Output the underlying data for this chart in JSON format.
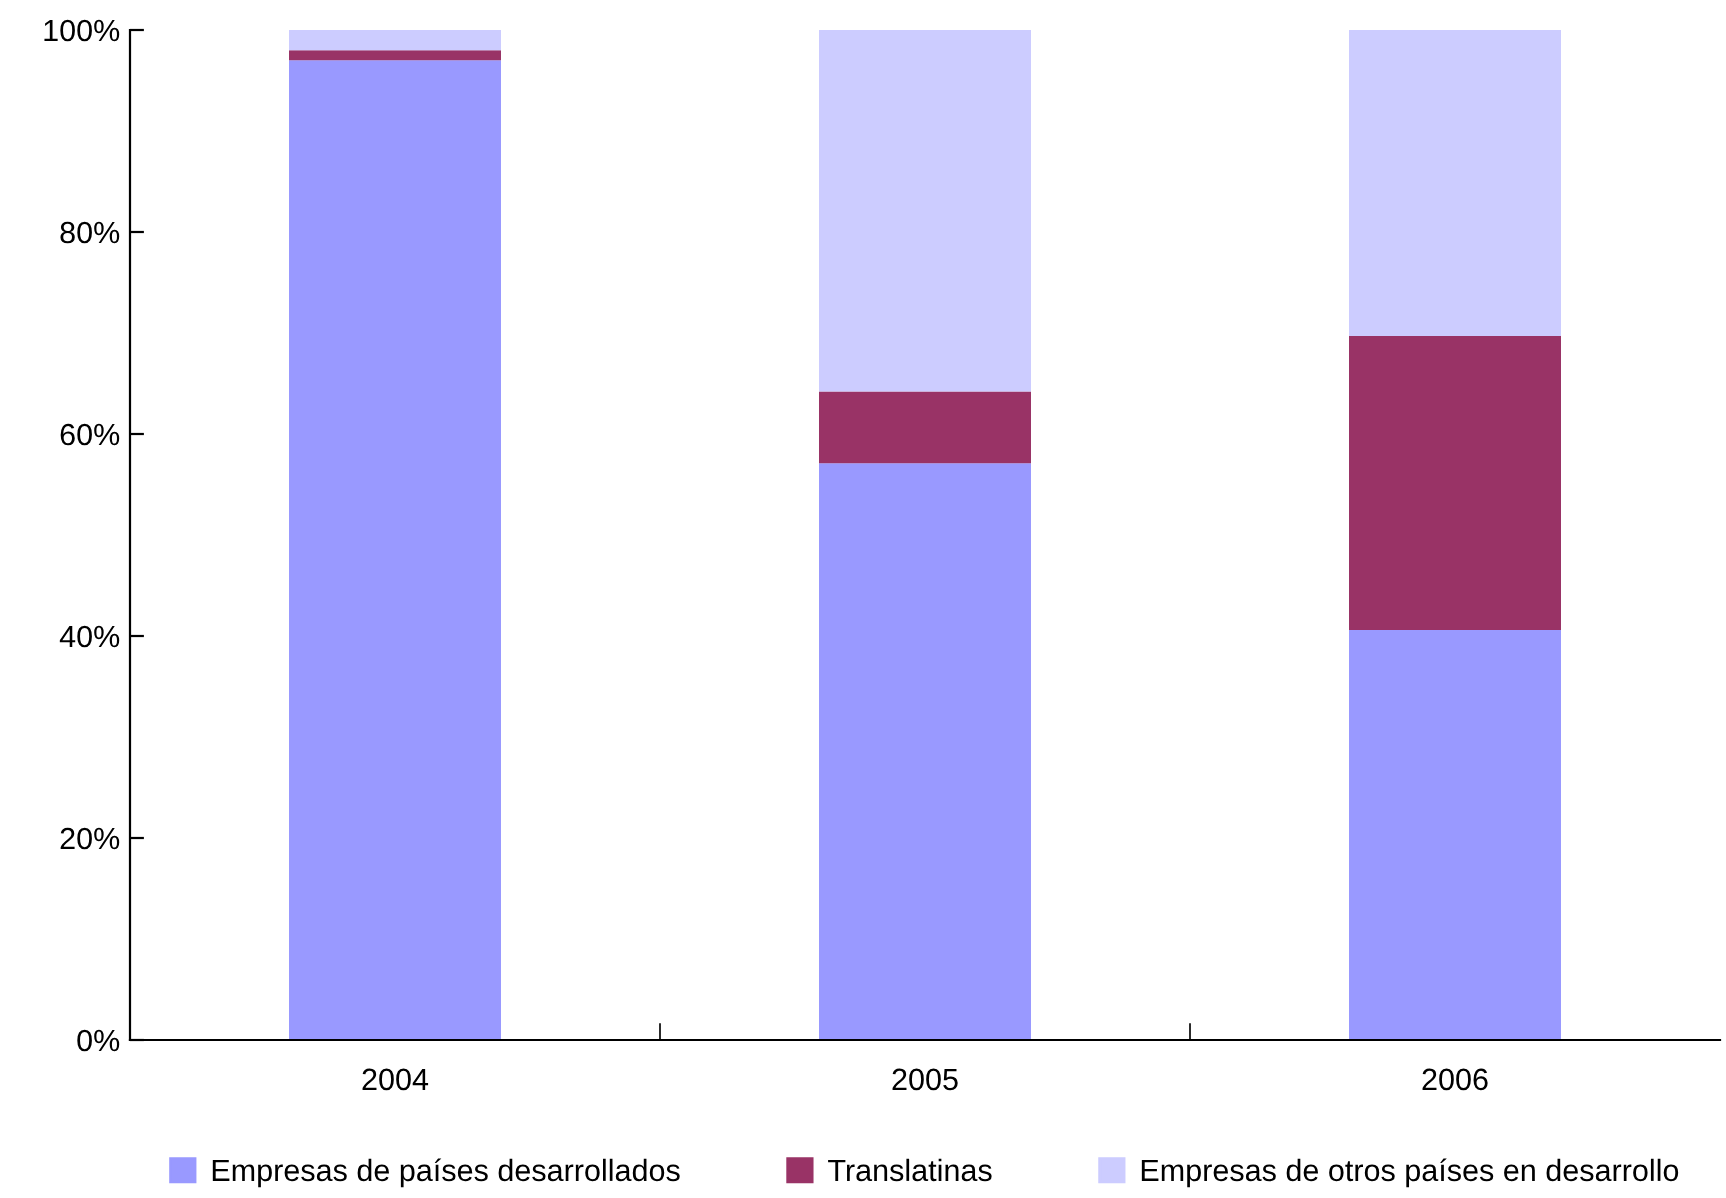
{
  "chart_data": {
    "type": "bar",
    "stacked": true,
    "categories": [
      "2004",
      "2005",
      "2006"
    ],
    "series": [
      {
        "name": "Empresas de países desarrollados",
        "color": "#9999ff",
        "values": [
          97.0,
          57.1,
          40.6
        ]
      },
      {
        "name": "Translatinas",
        "color": "#993366",
        "values": [
          1.0,
          7.1,
          29.1
        ]
      },
      {
        "name": "Empresas de otros países en desarrollo",
        "color": "#ccccff",
        "values": [
          2.0,
          35.8,
          30.3
        ]
      }
    ],
    "ylim": [
      0,
      100
    ],
    "yticks": [
      {
        "value": 0,
        "label": "0%"
      },
      {
        "value": 20,
        "label": "20%"
      },
      {
        "value": 40,
        "label": "40%"
      },
      {
        "value": 60,
        "label": "60%"
      },
      {
        "value": 80,
        "label": "80%"
      },
      {
        "value": 100,
        "label": "100%"
      }
    ],
    "grid": false,
    "legend": "bottom"
  }
}
